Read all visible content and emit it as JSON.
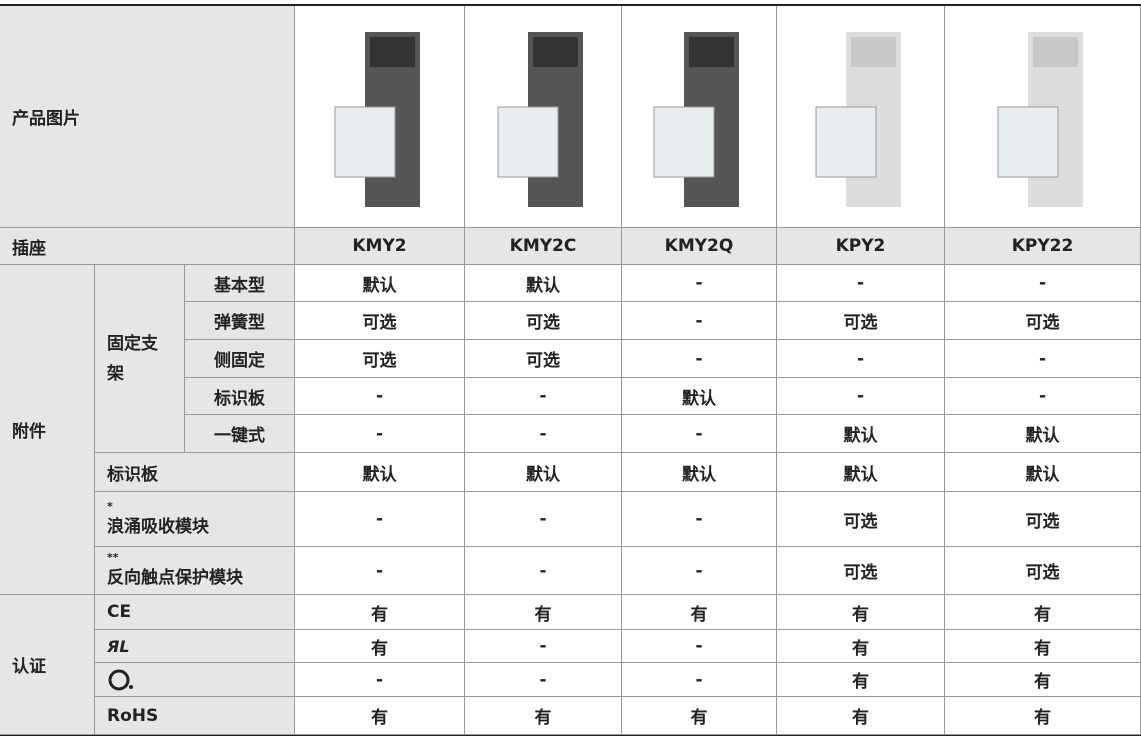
{
  "header": {
    "title": "产品图片"
  },
  "socket": {
    "label": "插座",
    "models": [
      "KMY2",
      "KMY2C",
      "KMY2Q",
      "KPY2",
      "KPY22"
    ]
  },
  "accessories": {
    "label": "附件",
    "bracket": {
      "label": "固定支架",
      "rows": [
        {
          "label": "基本型",
          "values": [
            "默认",
            "默认",
            "-",
            "-",
            "-"
          ]
        },
        {
          "label": "弹簧型",
          "values": [
            "可选",
            "可选",
            "-",
            "可选",
            "可选"
          ]
        },
        {
          "label": "侧固定",
          "values": [
            "可选",
            "可选",
            "-",
            "-",
            "-"
          ]
        },
        {
          "label": "标识板",
          "values": [
            "-",
            "-",
            "默认",
            "-",
            "-"
          ]
        },
        {
          "label": "一键式",
          "values": [
            "-",
            "-",
            "-",
            "默认",
            "默认"
          ]
        }
      ]
    },
    "rows": [
      {
        "label": "标识板",
        "values": [
          "默认",
          "默认",
          "默认",
          "默认",
          "默认"
        ]
      },
      {
        "mark": "*",
        "label": "浪涌吸收模块",
        "values": [
          "-",
          "-",
          "-",
          "可选",
          "可选"
        ]
      },
      {
        "mark": "**",
        "label": "反向触点保护模块",
        "values": [
          "-",
          "-",
          "-",
          "可选",
          "可选"
        ]
      }
    ]
  },
  "certification": {
    "label": "认证",
    "rows": [
      {
        "logo": "CE",
        "values": [
          "有",
          "有",
          "有",
          "有",
          "有"
        ]
      },
      {
        "values": [
          "有",
          "-",
          "-",
          "有",
          "有"
        ]
      },
      {
        "values": [
          "-",
          "-",
          "-",
          "有",
          "有"
        ]
      },
      {
        "logo": "RoHS",
        "values": [
          "有",
          "有",
          "有",
          "有",
          "有"
        ]
      }
    ]
  }
}
